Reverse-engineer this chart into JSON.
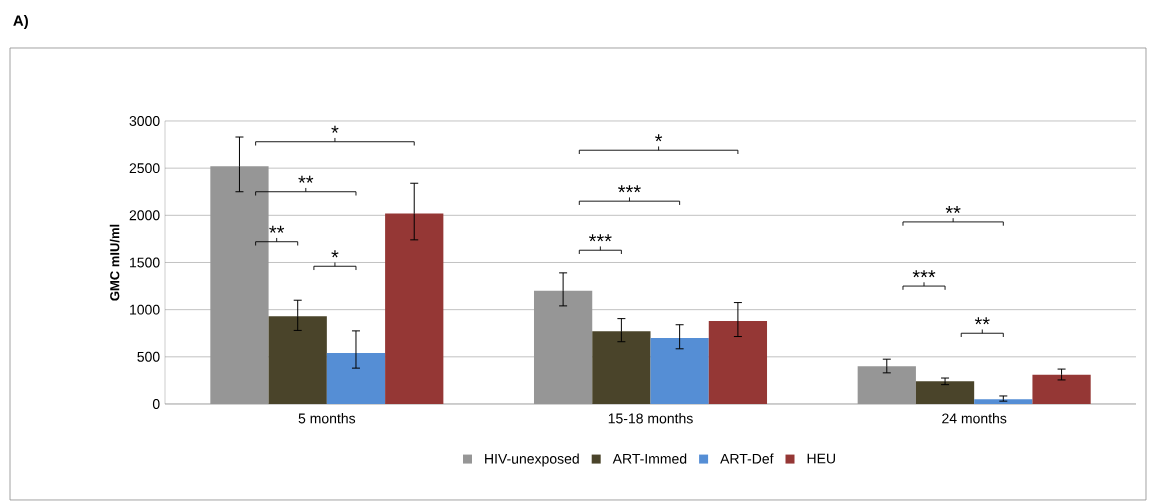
{
  "chart_data": {
    "type": "bar",
    "title": "A)",
    "ylabel": "GMC mIU/ml",
    "categories": [
      "5 months",
      "15-18 months",
      "24 months"
    ],
    "series": [
      {
        "name": "HIV-unexposed",
        "color": "#969696",
        "values": [
          2520,
          1200,
          400
        ],
        "errors": [
          [
            2250,
            2830
          ],
          [
            1040,
            1390
          ],
          [
            330,
            475
          ]
        ]
      },
      {
        "name": "ART-Immed",
        "color": "#4a442a",
        "values": [
          930,
          770,
          240
        ],
        "errors": [
          [
            780,
            1100
          ],
          [
            660,
            905
          ],
          [
            205,
            275
          ]
        ]
      },
      {
        "name": "ART-Def",
        "color": "#558ed5",
        "values": [
          540,
          700,
          50
        ],
        "errors": [
          [
            380,
            775
          ],
          [
            585,
            840
          ],
          [
            30,
            85
          ]
        ]
      },
      {
        "name": "HEU",
        "color": "#953735",
        "values": [
          2020,
          880,
          310
        ],
        "errors": [
          [
            1740,
            2340
          ],
          [
            715,
            1075
          ],
          [
            255,
            370
          ]
        ]
      }
    ],
    "ylim": [
      0,
      3000
    ],
    "yticks": [
      0,
      500,
      1000,
      1500,
      2000,
      2500,
      3000
    ],
    "grid": "y",
    "legend": "bottom",
    "annotations": [
      "*",
      "**",
      "**",
      "*",
      "*",
      "***",
      "***",
      "**",
      "***",
      "**"
    ]
  }
}
